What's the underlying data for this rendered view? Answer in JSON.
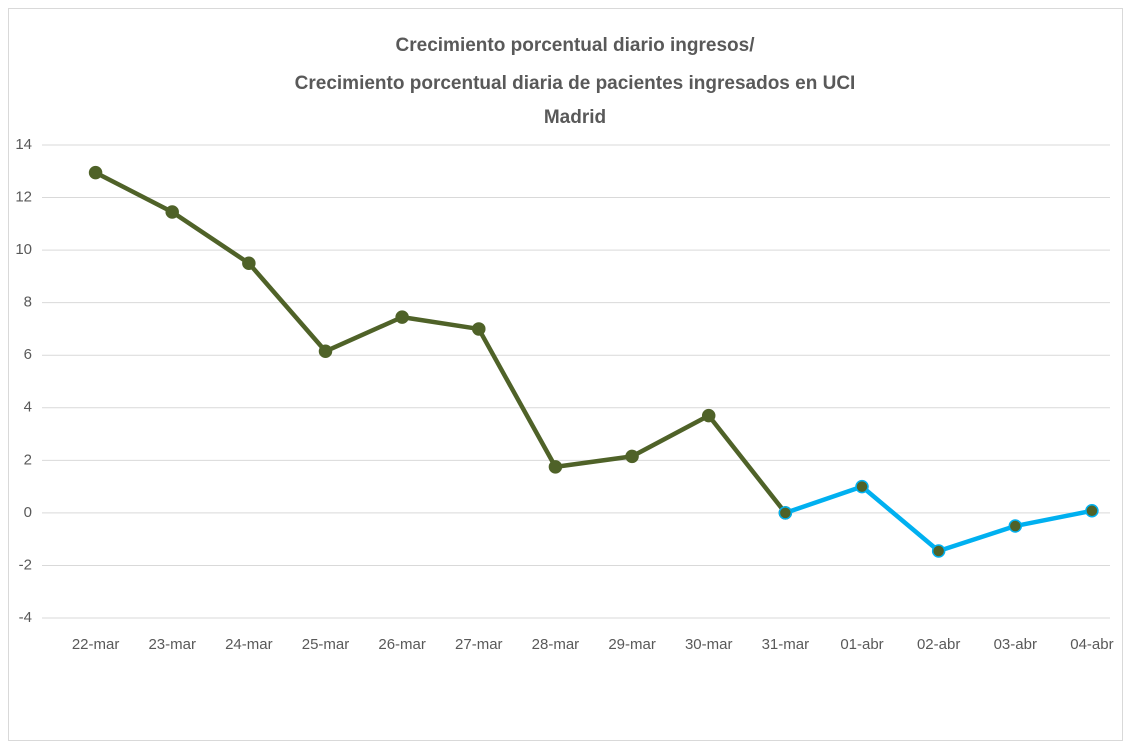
{
  "chart_data": {
    "type": "line",
    "title": [
      "Crecimiento porcentual diario ingresos/",
      "Crecimiento porcentual diaria de pacientes ingresados en UCI",
      "Madrid"
    ],
    "categories": [
      "22-mar",
      "23-mar",
      "24-mar",
      "25-mar",
      "26-mar",
      "27-mar",
      "28-mar",
      "29-mar",
      "30-mar",
      "31-mar",
      "01-abr",
      "02-abr",
      "03-abr",
      "04-abr"
    ],
    "series": [
      {
        "color": "#4f6228",
        "marker_color": "#4f6228",
        "values": [
          12.95,
          11.45,
          9.5,
          6.15,
          7.45,
          7.0,
          1.75,
          2.15,
          3.7,
          0,
          null,
          null,
          null,
          null
        ]
      },
      {
        "color": "#00b0f0",
        "marker_color": "#4f6228",
        "values": [
          null,
          null,
          null,
          null,
          null,
          null,
          null,
          null,
          null,
          0,
          1.0,
          -1.45,
          -0.5,
          0.08
        ]
      }
    ],
    "ylim": [
      -4,
      14
    ],
    "yticks": [
      -4,
      -2,
      0,
      2,
      4,
      6,
      8,
      10,
      12,
      14
    ],
    "grid": true
  }
}
